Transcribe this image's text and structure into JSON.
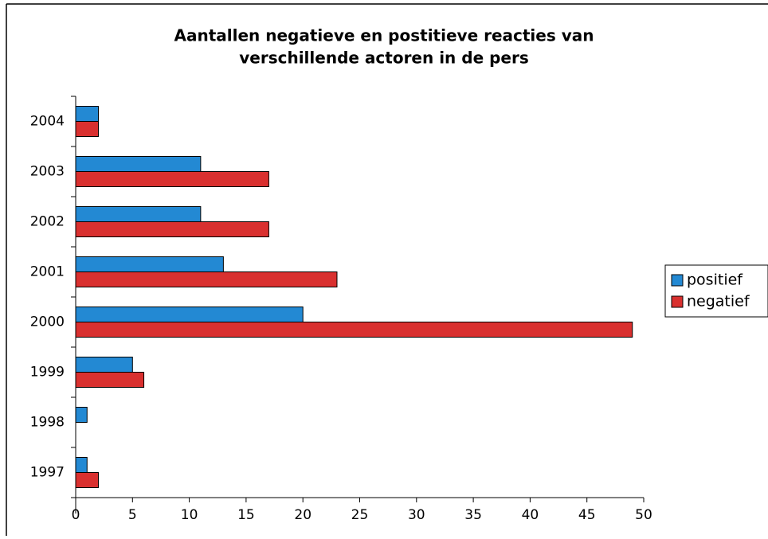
{
  "chart_data": {
    "type": "bar",
    "orientation": "horizontal",
    "title": [
      "Aantallen negatieve en postitieve reacties van",
      "verschillende actoren in de pers"
    ],
    "categories": [
      "1997",
      "1998",
      "1999",
      "2000",
      "2001",
      "2002",
      "2003",
      "2004"
    ],
    "series": [
      {
        "name": "positief",
        "color": "#2389d3",
        "values": [
          1,
          1,
          5,
          20,
          13,
          11,
          11,
          2
        ]
      },
      {
        "name": "negatief",
        "color": "#d9302f",
        "values": [
          2,
          0,
          6,
          49,
          23,
          17,
          17,
          2
        ]
      }
    ],
    "xlim": [
      0,
      50
    ],
    "xticks": [
      0,
      5,
      10,
      15,
      20,
      25,
      30,
      35,
      40,
      45,
      50
    ],
    "legend": "right"
  }
}
